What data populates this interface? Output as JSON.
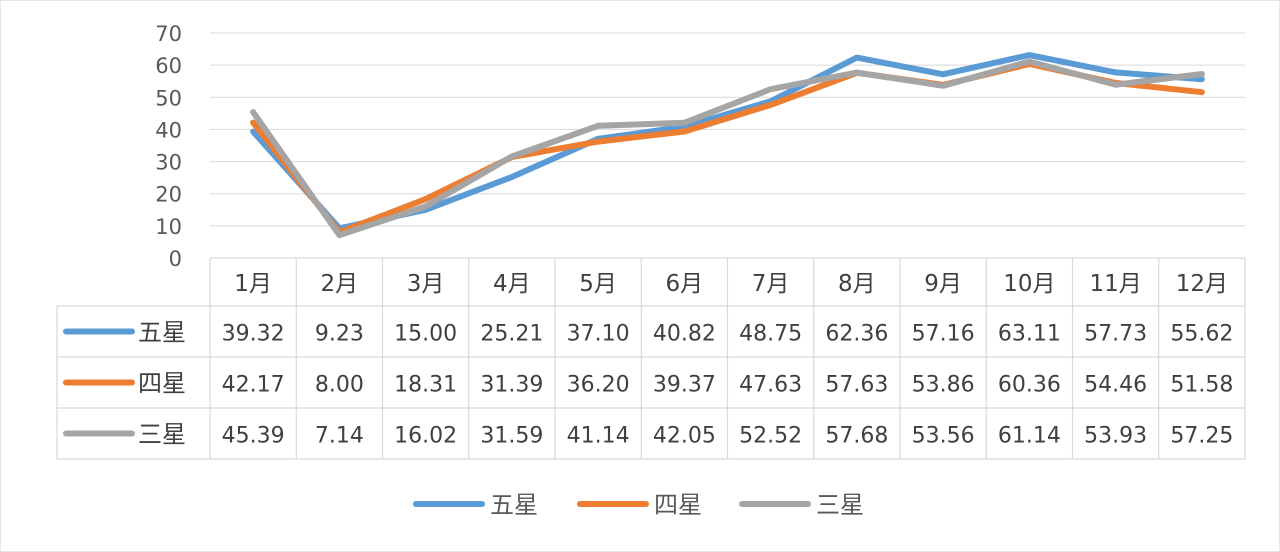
{
  "chart_data": {
    "type": "line",
    "title": "",
    "xlabel": "",
    "ylabel": "",
    "ylim": [
      0,
      70
    ],
    "yticks": [
      0,
      10,
      20,
      30,
      40,
      50,
      60,
      70
    ],
    "grid": true,
    "legend_position": "bottom",
    "data_table": true,
    "categories": [
      "1月",
      "2月",
      "3月",
      "4月",
      "5月",
      "6月",
      "7月",
      "8月",
      "9月",
      "10月",
      "11月",
      "12月"
    ],
    "series": [
      {
        "name": "五星",
        "color": "#5b9bd5",
        "values": [
          39.32,
          9.23,
          15.0,
          25.21,
          37.1,
          40.82,
          48.75,
          62.36,
          57.16,
          63.11,
          57.73,
          55.62
        ],
        "labels": [
          "39.32",
          "9.23",
          "15.00",
          "25.21",
          "37.10",
          "40.82",
          "48.75",
          "62.36",
          "57.16",
          "63.11",
          "57.73",
          "55.62"
        ]
      },
      {
        "name": "四星",
        "color": "#ed7d31",
        "values": [
          42.17,
          8.0,
          18.31,
          31.39,
          36.2,
          39.37,
          47.63,
          57.63,
          53.86,
          60.36,
          54.46,
          51.58
        ],
        "labels": [
          "42.17",
          "8.00",
          "18.31",
          "31.39",
          "36.20",
          "39.37",
          "47.63",
          "57.63",
          "53.86",
          "60.36",
          "54.46",
          "51.58"
        ]
      },
      {
        "name": "三星",
        "color": "#a5a5a5",
        "values": [
          45.39,
          7.14,
          16.02,
          31.59,
          41.14,
          42.05,
          52.52,
          57.68,
          53.56,
          61.14,
          53.93,
          57.25
        ],
        "labels": [
          "45.39",
          "7.14",
          "16.02",
          "31.59",
          "41.14",
          "42.05",
          "52.52",
          "57.68",
          "53.56",
          "61.14",
          "53.93",
          "57.25"
        ]
      }
    ]
  }
}
